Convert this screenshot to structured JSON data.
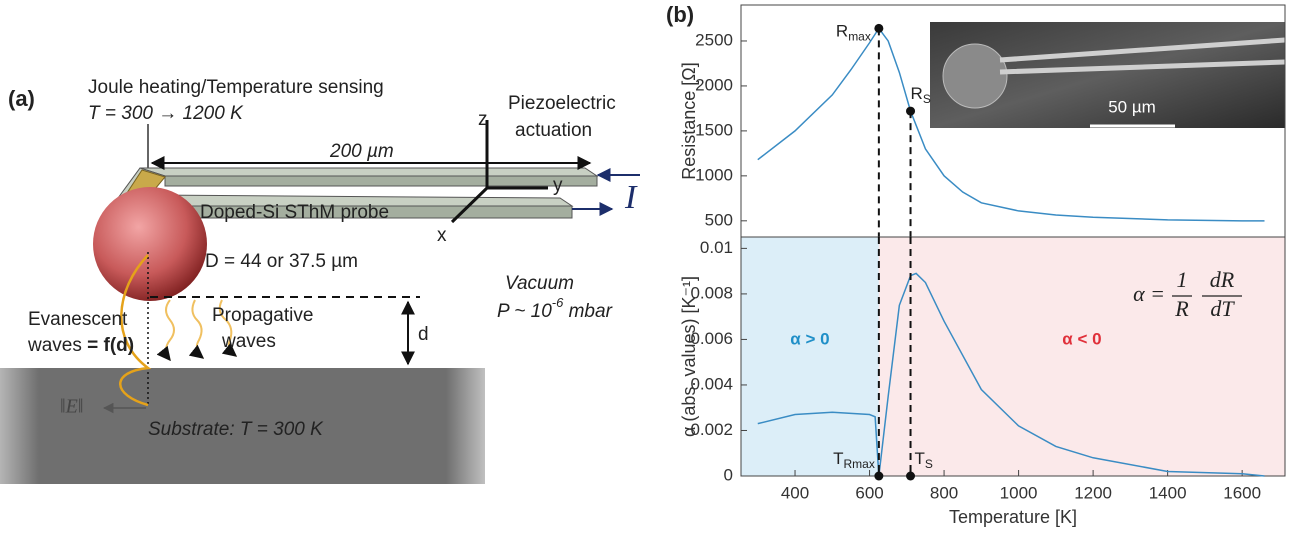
{
  "diagram": {
    "panel_label": "(a)",
    "heating": "Joule heating/Temperature sensing",
    "temperature_range": "T = 300 → 1200 K",
    "length": "200 µm",
    "axis_z": "z",
    "axis_y": "y",
    "axis_x": "x",
    "actuation": [
      "Piezoelectric",
      "actuation"
    ],
    "current": "I",
    "probe": "Doped-Si SThM probe",
    "diameter": "D = 44 or 37.5 µm",
    "vacuum": "Vacuum",
    "pressure": {
      "base": "P ~ 10",
      "sup": "-6",
      "unit": " mbar"
    },
    "evanescent": {
      "line1": "Evanescent",
      "line2": "waves ",
      "emph": "= f(d)"
    },
    "propagative": [
      "Propagative",
      "waves"
    ],
    "gap": "d",
    "field": "‖E‖",
    "substrate": "Substrate: T = 300 K"
  },
  "panel_b_label": "(b)",
  "inset_scale": "50 µm",
  "chart_data": [
    {
      "type": "line",
      "y_label": "Resistance [Ω]",
      "xlim": [
        255,
        1715
      ],
      "ylim": [
        320,
        2900
      ],
      "yticks": [
        500,
        1000,
        1500,
        2000,
        2500
      ],
      "x": [
        300,
        400,
        500,
        550,
        600,
        625,
        650,
        680,
        710,
        750,
        800,
        850,
        900,
        1000,
        1100,
        1200,
        1400,
        1600,
        1660
      ],
      "series": [
        {
          "color": "#3a8cc4",
          "values": [
            1180,
            1500,
            1900,
            2180,
            2480,
            2640,
            2500,
            2150,
            1720,
            1300,
            1000,
            820,
            700,
            610,
            565,
            540,
            510,
            500,
            500
          ]
        }
      ],
      "points": [
        {
          "label": {
            "base": "R",
            "sub": "max"
          },
          "x": 625,
          "y": 2640
        },
        {
          "label": {
            "base": "R",
            "sub": "S"
          },
          "x": 710,
          "y": 1720
        }
      ]
    },
    {
      "type": "line",
      "x_label": "Temperature [K]",
      "y_label": "α (abs. values) [K⁻¹]",
      "xlim": [
        255,
        1715
      ],
      "ylim": [
        0,
        0.0105
      ],
      "xticks": [
        400,
        600,
        800,
        1000,
        1200,
        1400,
        1600
      ],
      "yticks": [
        0,
        0.002,
        0.004,
        0.006,
        0.008,
        0.01
      ],
      "x": [
        300,
        400,
        500,
        600,
        615,
        625,
        650,
        680,
        710,
        725,
        750,
        800,
        900,
        1000,
        1100,
        1200,
        1400,
        1600,
        1660
      ],
      "series": [
        {
          "color": "#3a8cc4",
          "values": [
            0.0023,
            0.0027,
            0.0028,
            0.0027,
            0.0026,
            0,
            0.0035,
            0.0075,
            0.0088,
            0.0089,
            0.0085,
            0.0068,
            0.0038,
            0.0022,
            0.0013,
            0.0008,
            0.0002,
            0.0001,
            0
          ]
        }
      ],
      "regions": [
        {
          "label": "α > 0",
          "x": [
            255,
            625
          ],
          "color": "#dceef8",
          "text_color": "#1f8fc8"
        },
        {
          "label": "α < 0",
          "x": [
            625,
            1715
          ],
          "color": "#fbe9ea",
          "text_color": "#e0303a"
        }
      ],
      "points": [
        {
          "label": {
            "base": "T",
            "sub": "Rmax"
          },
          "x": 625,
          "y": 0
        },
        {
          "label": {
            "base": "T",
            "sub": "S"
          },
          "x": 710,
          "y": 0
        }
      ],
      "formula": {
        "lhs": "α =",
        "num1": "1",
        "den1": "R",
        "num2": "dR",
        "den2": "dT"
      }
    }
  ]
}
